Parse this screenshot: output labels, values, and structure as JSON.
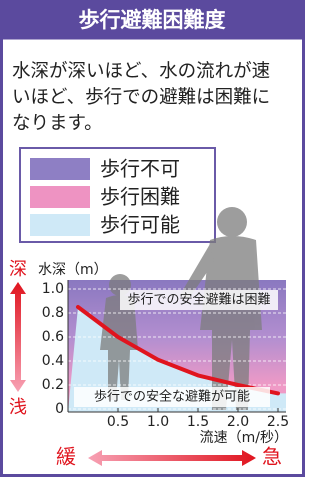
{
  "chart_data": {
    "type": "line",
    "title": "歩行避難困難度",
    "description": [
      "水深が深いほど、水の流れが速",
      "いほど、歩行での避難は困難に",
      "なります。"
    ],
    "legend": [
      {
        "label": "歩行不可",
        "color": "#8e7fc4"
      },
      {
        "label": "歩行困難",
        "color": "#ee93c2"
      },
      {
        "label": "歩行可能",
        "color": "#cfe9f7"
      }
    ],
    "y_label": "水深（m）",
    "x_label": "流速（m/秒）",
    "x": [
      0,
      0.5,
      1.0,
      1.5,
      2.0,
      2.5
    ],
    "series": [
      {
        "color": "#e0141e",
        "values": [
          0.85,
          0.6,
          0.41,
          0.28,
          0.2,
          0.13
        ]
      }
    ],
    "xlim": [
      -0.125,
      2.6
    ],
    "ylim": [
      -0.025,
      1.075
    ],
    "xticks": [
      0.5,
      {
        "value": 1,
        "label": "1.0"
      },
      1.5,
      {
        "value": 2,
        "label": "2.0"
      },
      2.5
    ],
    "yticks": [
      0,
      0.2,
      0.4,
      0.6,
      0.8,
      {
        "value": 1,
        "label": "1.0"
      }
    ],
    "annotations": {
      "upper_region": "歩行での安全避難は困難",
      "lower_region": "歩行での安全な避難が可能",
      "deep": "深",
      "shallow": "浅",
      "slow": "緩",
      "fast": "急"
    }
  }
}
